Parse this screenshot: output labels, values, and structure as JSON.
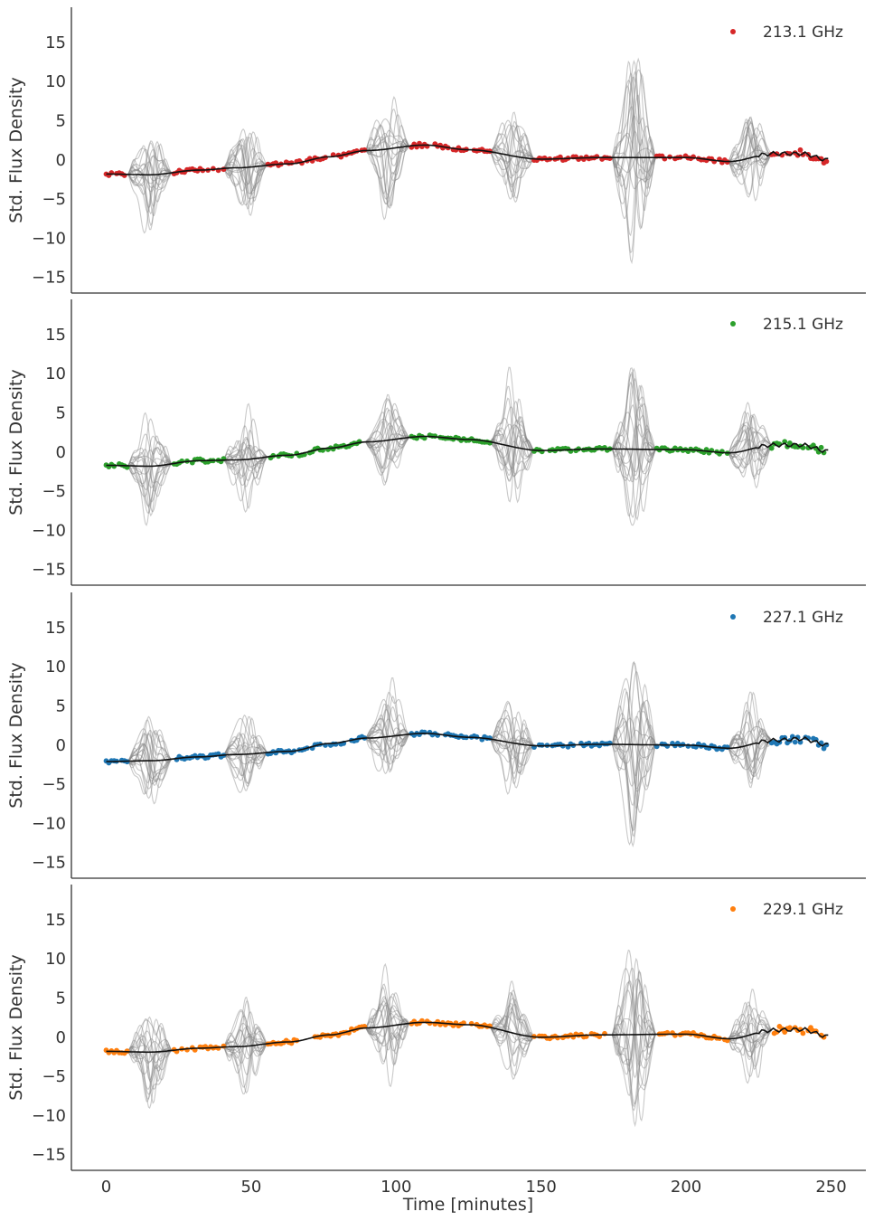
{
  "figure": {
    "xlabel": "Time [minutes]",
    "ylabel": "Std. Flux Density",
    "shared_x": true
  },
  "chart_data": [
    {
      "type": "scatter",
      "title": "",
      "legend": {
        "label": "213.1 GHz",
        "color": "#d62728",
        "placement": "top-right"
      },
      "xlabel": "Time [minutes]",
      "ylabel": "Std. Flux Density",
      "xlim": [
        -12,
        262
      ],
      "ylim": [
        -17,
        19.5
      ],
      "xticks": [
        0,
        50,
        100,
        150,
        200,
        250
      ],
      "yticks": [
        -15,
        -10,
        -5,
        0,
        5,
        10,
        15
      ],
      "trend_knots": [
        [
          0,
          -1.8
        ],
        [
          15,
          -1.9
        ],
        [
          32,
          -1.3
        ],
        [
          45,
          -1.0
        ],
        [
          63,
          -0.5
        ],
        [
          77,
          0.4
        ],
        [
          90,
          1.2
        ],
        [
          110,
          1.9
        ],
        [
          125,
          1.3
        ],
        [
          150,
          0.1
        ],
        [
          170,
          0.3
        ],
        [
          200,
          0.3
        ],
        [
          215,
          -0.2
        ],
        [
          230,
          0.8
        ],
        [
          240,
          0.8
        ],
        [
          249,
          0.0
        ]
      ],
      "gaps": [
        {
          "center": 15,
          "amplitude": 9
        },
        {
          "center": 48,
          "amplitude": 7
        },
        {
          "center": 97,
          "amplitude": 9
        },
        {
          "center": 140,
          "amplitude": 8
        },
        {
          "center": 182,
          "amplitude": 18
        },
        {
          "center": 222,
          "amplitude": 7
        }
      ]
    },
    {
      "type": "scatter",
      "title": "",
      "legend": {
        "label": "215.1 GHz",
        "color": "#2ca02c",
        "placement": "top-right"
      },
      "xlabel": "Time [minutes]",
      "ylabel": "Std. Flux Density",
      "xlim": [
        -12,
        262
      ],
      "ylim": [
        -17,
        19.5
      ],
      "xticks": [
        0,
        50,
        100,
        150,
        200,
        250
      ],
      "yticks": [
        -15,
        -10,
        -5,
        0,
        5,
        10,
        15
      ],
      "trend_knots": [
        [
          0,
          -1.7
        ],
        [
          15,
          -1.8
        ],
        [
          32,
          -1.1
        ],
        [
          45,
          -1.0
        ],
        [
          63,
          -0.4
        ],
        [
          77,
          0.5
        ],
        [
          90,
          1.3
        ],
        [
          110,
          2.0
        ],
        [
          125,
          1.6
        ],
        [
          150,
          0.2
        ],
        [
          170,
          0.4
        ],
        [
          200,
          0.3
        ],
        [
          215,
          -0.1
        ],
        [
          230,
          0.9
        ],
        [
          240,
          0.9
        ],
        [
          249,
          0.1
        ]
      ],
      "gaps": [
        {
          "center": 15,
          "amplitude": 8
        },
        {
          "center": 48,
          "amplitude": 8
        },
        {
          "center": 97,
          "amplitude": 7
        },
        {
          "center": 140,
          "amplitude": 10
        },
        {
          "center": 182,
          "amplitude": 14
        },
        {
          "center": 222,
          "amplitude": 7
        }
      ]
    },
    {
      "type": "scatter",
      "title": "",
      "legend": {
        "label": "227.1 GHz",
        "color": "#1f77b4",
        "placement": "top-right"
      },
      "xlabel": "Time [minutes]",
      "ylabel": "Std. Flux Density",
      "xlim": [
        -12,
        262
      ],
      "ylim": [
        -17,
        19.5
      ],
      "xticks": [
        0,
        50,
        100,
        150,
        200,
        250
      ],
      "yticks": [
        -15,
        -10,
        -5,
        0,
        5,
        10,
        15
      ],
      "trend_knots": [
        [
          0,
          -2.1
        ],
        [
          15,
          -2.0
        ],
        [
          32,
          -1.5
        ],
        [
          45,
          -1.2
        ],
        [
          63,
          -0.8
        ],
        [
          77,
          0.2
        ],
        [
          90,
          0.9
        ],
        [
          110,
          1.5
        ],
        [
          125,
          1.0
        ],
        [
          150,
          -0.1
        ],
        [
          170,
          0.1
        ],
        [
          200,
          0.0
        ],
        [
          215,
          -0.4
        ],
        [
          230,
          0.6
        ],
        [
          240,
          0.8
        ],
        [
          249,
          0.0
        ]
      ],
      "gaps": [
        {
          "center": 15,
          "amplitude": 8
        },
        {
          "center": 48,
          "amplitude": 7
        },
        {
          "center": 97,
          "amplitude": 9
        },
        {
          "center": 140,
          "amplitude": 7
        },
        {
          "center": 182,
          "amplitude": 17
        },
        {
          "center": 222,
          "amplitude": 7
        }
      ]
    },
    {
      "type": "scatter",
      "title": "",
      "legend": {
        "label": "229.1 GHz",
        "color": "#ff7f0e",
        "placement": "top-right"
      },
      "xlabel": "Time [minutes]",
      "ylabel": "Std. Flux Density",
      "xlim": [
        -12,
        262
      ],
      "ylim": [
        -17,
        19.5
      ],
      "xticks": [
        0,
        50,
        100,
        150,
        200,
        250
      ],
      "yticks": [
        -15,
        -10,
        -5,
        0,
        5,
        10,
        15
      ],
      "trend_knots": [
        [
          0,
          -1.8
        ],
        [
          15,
          -1.9
        ],
        [
          32,
          -1.4
        ],
        [
          45,
          -1.2
        ],
        [
          63,
          -0.6
        ],
        [
          77,
          0.3
        ],
        [
          90,
          1.2
        ],
        [
          110,
          1.9
        ],
        [
          125,
          1.6
        ],
        [
          150,
          0.0
        ],
        [
          170,
          0.3
        ],
        [
          200,
          0.4
        ],
        [
          215,
          -0.2
        ],
        [
          230,
          0.9
        ],
        [
          240,
          1.0
        ],
        [
          249,
          0.1
        ]
      ],
      "gaps": [
        {
          "center": 15,
          "amplitude": 7
        },
        {
          "center": 48,
          "amplitude": 7
        },
        {
          "center": 97,
          "amplitude": 8
        },
        {
          "center": 140,
          "amplitude": 7
        },
        {
          "center": 182,
          "amplitude": 16
        },
        {
          "center": 222,
          "amplitude": 7
        }
      ]
    }
  ]
}
